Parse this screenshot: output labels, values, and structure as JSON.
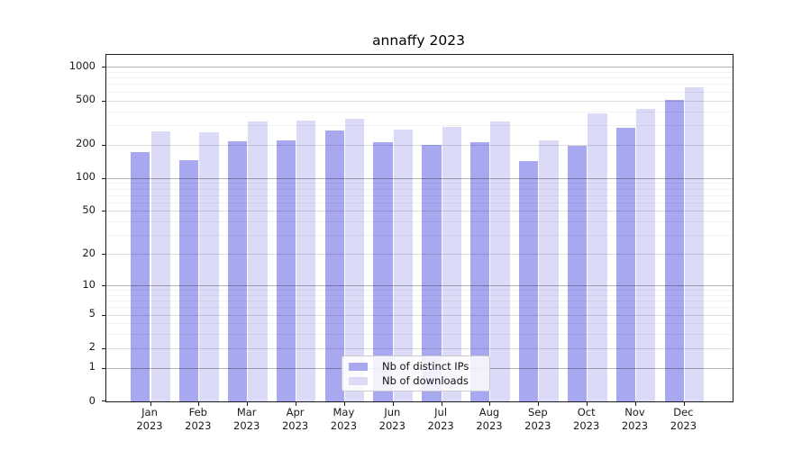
{
  "figure": {
    "background": "#ffffff"
  },
  "chart_data": {
    "type": "bar",
    "title": "annaffy 2023",
    "categories": [
      {
        "month": "Jan",
        "year": "2023"
      },
      {
        "month": "Feb",
        "year": "2023"
      },
      {
        "month": "Mar",
        "year": "2023"
      },
      {
        "month": "Apr",
        "year": "2023"
      },
      {
        "month": "May",
        "year": "2023"
      },
      {
        "month": "Jun",
        "year": "2023"
      },
      {
        "month": "Jul",
        "year": "2023"
      },
      {
        "month": "Aug",
        "year": "2023"
      },
      {
        "month": "Sep",
        "year": "2023"
      },
      {
        "month": "Oct",
        "year": "2023"
      },
      {
        "month": "Nov",
        "year": "2023"
      },
      {
        "month": "Dec",
        "year": "2023"
      }
    ],
    "series": [
      {
        "name": "Nb of distinct IPs",
        "color": "#a8a8f0",
        "values": [
          170,
          145,
          215,
          220,
          268,
          210,
          199,
          212,
          141,
          195,
          283,
          505
        ]
      },
      {
        "name": "Nb of downloads",
        "color": "#dbdbf8",
        "values": [
          265,
          256,
          322,
          326,
          340,
          273,
          288,
          325,
          218,
          380,
          419,
          660
        ]
      }
    ],
    "y_axis": {
      "scale": "log10(value+1)",
      "major_ticks": [
        0,
        1,
        2,
        5,
        10,
        20,
        50,
        100,
        200,
        500,
        1000
      ],
      "decade_gridlines": [
        1,
        10,
        100,
        1000
      ],
      "minor_gridlines": [
        3,
        4,
        6,
        7,
        8,
        9,
        30,
        40,
        60,
        70,
        80,
        90,
        300,
        400,
        600,
        700,
        800,
        900
      ],
      "range": [
        0,
        1280
      ]
    },
    "x_axis": {
      "tick_label_lines": 2
    },
    "grid": "on",
    "legend_position": "inside-bottom-center"
  }
}
